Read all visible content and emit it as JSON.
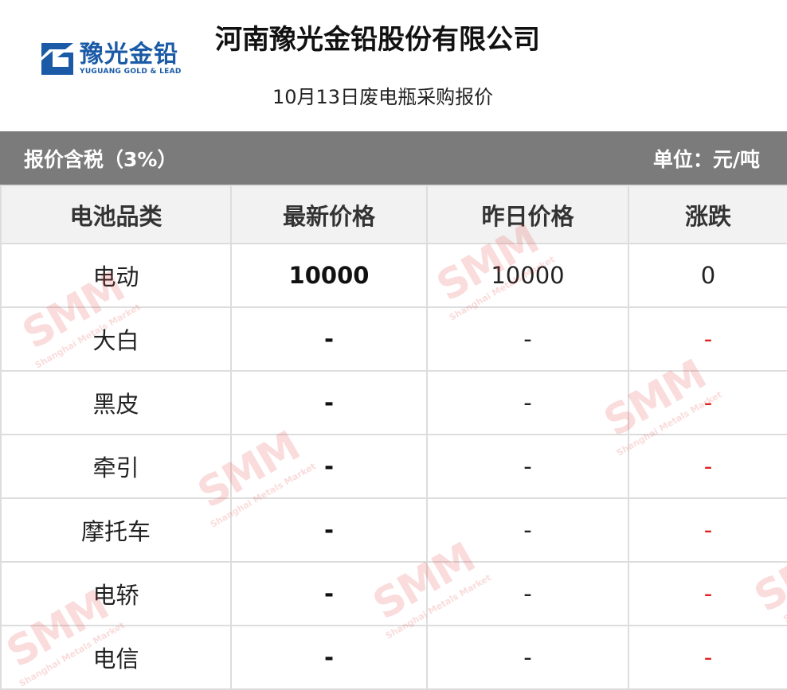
{
  "logo": {
    "cn": "豫光金铅",
    "en": "YUGUANG GOLD & LEAD",
    "color": "#1a5aa6"
  },
  "title": "河南豫光金铅股份有限公司",
  "subtitle": "10月13日废电瓶采购报价",
  "bar": {
    "left": "报价含税（3%）",
    "right": "单位：元/吨"
  },
  "table": {
    "headers": [
      "电池品类",
      "最新价格",
      "昨日价格",
      "涨跌"
    ],
    "rows": [
      [
        "电动",
        "10000",
        "10000",
        "0"
      ],
      [
        "大白",
        "-",
        "-",
        "-"
      ],
      [
        "黑皮",
        "-",
        "-",
        "-"
      ],
      [
        "牵引",
        "-",
        "-",
        "-"
      ],
      [
        "摩托车",
        "-",
        "-",
        "-"
      ],
      [
        "电轿",
        "-",
        "-",
        "-"
      ],
      [
        "电信",
        "-",
        "-",
        "-"
      ]
    ]
  },
  "watermark": {
    "brand": "SMM",
    "text": "Shanghai Metals Market"
  },
  "colors": {
    "change": "#e02020",
    "bar": "#7b7b7b"
  }
}
